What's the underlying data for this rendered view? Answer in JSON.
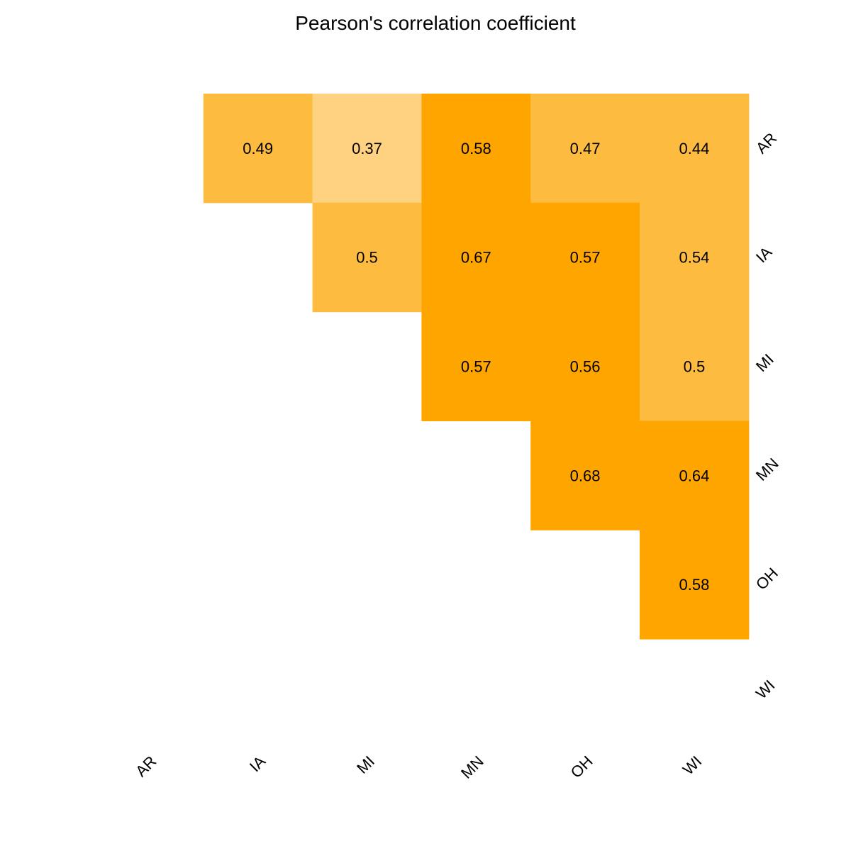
{
  "chart_data": {
    "type": "heatmap",
    "title": "Pearson's correlation coefficient",
    "x_categories": [
      "AR",
      "IA",
      "MI",
      "MN",
      "OH",
      "WI"
    ],
    "y_categories": [
      "AR",
      "IA",
      "MI",
      "MN",
      "OH",
      "WI"
    ],
    "cells": [
      {
        "row": "AR",
        "col": "IA",
        "value": 0.49,
        "label": "0.49",
        "color": "#FDBB40"
      },
      {
        "row": "AR",
        "col": "MI",
        "value": 0.37,
        "label": "0.37",
        "color": "#FED280"
      },
      {
        "row": "AR",
        "col": "MN",
        "value": 0.58,
        "label": "0.58",
        "color": "#FFA500"
      },
      {
        "row": "AR",
        "col": "OH",
        "value": 0.47,
        "label": "0.47",
        "color": "#FDBB40"
      },
      {
        "row": "AR",
        "col": "WI",
        "value": 0.44,
        "label": "0.44",
        "color": "#FDBB40"
      },
      {
        "row": "IA",
        "col": "MI",
        "value": 0.5,
        "label": "0.5",
        "color": "#FDBB40"
      },
      {
        "row": "IA",
        "col": "MN",
        "value": 0.67,
        "label": "0.67",
        "color": "#FFA500"
      },
      {
        "row": "IA",
        "col": "OH",
        "value": 0.57,
        "label": "0.57",
        "color": "#FFA500"
      },
      {
        "row": "IA",
        "col": "WI",
        "value": 0.54,
        "label": "0.54",
        "color": "#FDBB40"
      },
      {
        "row": "MI",
        "col": "MN",
        "value": 0.57,
        "label": "0.57",
        "color": "#FFA500"
      },
      {
        "row": "MI",
        "col": "OH",
        "value": 0.56,
        "label": "0.56",
        "color": "#FFA500"
      },
      {
        "row": "MI",
        "col": "WI",
        "value": 0.5,
        "label": "0.5",
        "color": "#FDBB40"
      },
      {
        "row": "MN",
        "col": "OH",
        "value": 0.68,
        "label": "0.68",
        "color": "#FFA500"
      },
      {
        "row": "MN",
        "col": "WI",
        "value": 0.64,
        "label": "0.64",
        "color": "#FFA500"
      },
      {
        "row": "OH",
        "col": "WI",
        "value": 0.58,
        "label": "0.58",
        "color": "#FFA500"
      }
    ],
    "grid": false,
    "legend": "none",
    "y_axis_side": "right"
  }
}
